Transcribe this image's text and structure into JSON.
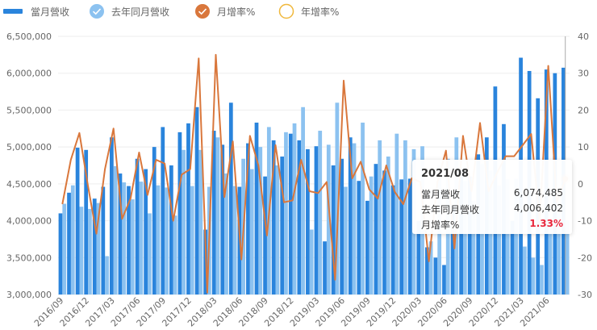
{
  "legend": {
    "items": [
      {
        "label": "當月營收",
        "icon": "bar-swatch",
        "color": "#2a84dc"
      },
      {
        "label": "去年同月營收",
        "icon": "check-circle-filled",
        "color": "#8cc2f0"
      },
      {
        "label": "月增率%",
        "icon": "check-circle-filled",
        "color": "#d9773c"
      },
      {
        "label": "年增率%",
        "icon": "circle-outline",
        "color": "#f0b83c"
      }
    ]
  },
  "tooltip": {
    "title": "2021/08",
    "rows": [
      {
        "label": "當月營收",
        "value": "6,074,485"
      },
      {
        "label": "去年同月營收",
        "value": "4,006,402"
      },
      {
        "label": "月增率%",
        "value": "1.33%"
      }
    ]
  },
  "colors": {
    "current": "#2a84dc",
    "last_year": "#8cc2f0",
    "mom": "#d9773c",
    "highlight": "#e8273d",
    "grid": "#eeeeee"
  },
  "chart_data": {
    "type": "bar",
    "title": "",
    "xlabel": "",
    "ylabel": "",
    "y_left": {
      "min": 3000000,
      "max": 6500000,
      "ticks": [
        "3,000,000",
        "3,500,000",
        "4,000,000",
        "4,500,000",
        "5,000,000",
        "5,500,000",
        "6,000,000",
        "6,500,000"
      ]
    },
    "y_right": {
      "min": -30,
      "max": 40,
      "ticks": [
        "-30",
        "-20",
        "-10",
        "0",
        "10",
        "20",
        "30",
        "40"
      ]
    },
    "x_tick_labels": [
      "2016/09",
      "2016/12",
      "2017/03",
      "2017/06",
      "2017/09",
      "2017/12",
      "2018/03",
      "2018/06",
      "2018/09",
      "2018/12",
      "2019/03",
      "2019/06",
      "2019/09",
      "2019/12",
      "2020/03",
      "2020/06",
      "2020/09",
      "2020/12",
      "2021/03",
      "2021/06"
    ],
    "categories": [
      "2016/09",
      "2016/10",
      "2016/11",
      "2016/12",
      "2017/01",
      "2017/02",
      "2017/03",
      "2017/04",
      "2017/05",
      "2017/06",
      "2017/07",
      "2017/08",
      "2017/09",
      "2017/10",
      "2017/11",
      "2017/12",
      "2018/01",
      "2018/02",
      "2018/03",
      "2018/04",
      "2018/05",
      "2018/06",
      "2018/07",
      "2018/08",
      "2018/09",
      "2018/10",
      "2018/11",
      "2018/12",
      "2019/01",
      "2019/02",
      "2019/03",
      "2019/04",
      "2019/05",
      "2019/06",
      "2019/07",
      "2019/08",
      "2019/09",
      "2019/10",
      "2019/11",
      "2019/12",
      "2020/01",
      "2020/02",
      "2020/03",
      "2020/04",
      "2020/05",
      "2020/06",
      "2020/07",
      "2020/08",
      "2020/09",
      "2020/10",
      "2020/11",
      "2020/12",
      "2021/01",
      "2021/02",
      "2021/03",
      "2021/04",
      "2021/05",
      "2021/06",
      "2021/07",
      "2021/08"
    ],
    "series": [
      {
        "name": "當月營收",
        "type": "bar",
        "axis": "left",
        "values": [
          4100000,
          4380000,
          4990000,
          4960000,
          4300000,
          4460000,
          5130000,
          4640000,
          4470000,
          4840000,
          4700000,
          5000000,
          5270000,
          4750000,
          5200000,
          5320000,
          5540000,
          3880000,
          5220000,
          5030000,
          5600000,
          4460000,
          5050000,
          5330000,
          4600000,
          5090000,
          4870000,
          5180000,
          5090000,
          4970000,
          5010000,
          3720000,
          4750000,
          4840000,
          5130000,
          4540000,
          4270000,
          4770000,
          4680000,
          4480000,
          4560000,
          4570000,
          4000000,
          3640000,
          3500000,
          3400000,
          4200000,
          4600000,
          4600000,
          4900000,
          5130000,
          5820000,
          5310000,
          4000000,
          6210000,
          6030000,
          5660000,
          6050000,
          6000000,
          6074485
        ]
      },
      {
        "name": "去年同月營收",
        "type": "bar",
        "axis": "left",
        "values": [
          4230000,
          4480000,
          4190000,
          4160000,
          4240000,
          3520000,
          4740000,
          4520000,
          4290000,
          4530000,
          4100000,
          4480000,
          4450000,
          4070000,
          4960000,
          4470000,
          4960000,
          4460000,
          5130000,
          4640000,
          4470000,
          4840000,
          4700000,
          5000000,
          5270000,
          4750000,
          5200000,
          5320000,
          5540000,
          3880000,
          5220000,
          5030000,
          5600000,
          4460000,
          5050000,
          5330000,
          4600000,
          5090000,
          4870000,
          5180000,
          5090000,
          4970000,
          5010000,
          3720000,
          4750000,
          4840000,
          5130000,
          4540000,
          4270000,
          4770000,
          4680000,
          4480000,
          4560000,
          4570000,
          3650000,
          3500000,
          3400000,
          3950000,
          4100000,
          4006402
        ]
      },
      {
        "name": "月增率%",
        "type": "line",
        "axis": "right",
        "values": [
          -5.5,
          6.5,
          13.8,
          -0.5,
          -13.5,
          4.0,
          15.0,
          -9.5,
          -4.0,
          8.5,
          -3.0,
          6.5,
          5.5,
          -10.0,
          2.5,
          4.0,
          34.0,
          -29.5,
          35.0,
          -3.6,
          11.5,
          -20.5,
          13.0,
          5.0,
          -14.0,
          10.5,
          -5.0,
          -4.5,
          6.5,
          -2.0,
          -2.5,
          0.5,
          -26.0,
          28.0,
          1.5,
          6.0,
          -1.5,
          -4.0,
          5.0,
          -2.2,
          -5.5,
          1.5,
          0.5,
          -21.0,
          0.5,
          9.0,
          -17.5,
          13.0,
          -2.0,
          16.5,
          -2.0,
          3.0,
          7.5,
          7.5,
          10.5,
          13.5,
          -10.0,
          32.0,
          -5.0,
          1.33
        ]
      },
      {
        "name": "年增率%",
        "type": "line",
        "axis": "right",
        "visible": false,
        "values": []
      }
    ],
    "legend_position": "top",
    "grid": true,
    "highlighted_point": {
      "category": "2021/08",
      "current": 6074485,
      "last_year": 4006402,
      "mom_pct": 1.33
    }
  }
}
